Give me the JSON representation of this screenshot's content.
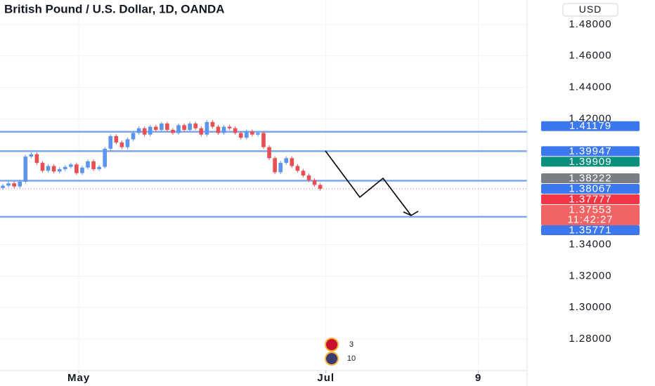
{
  "chart_data": {
    "type": "candlestick",
    "title": "British Pound / U.S. Dollar, 1D, OANDA",
    "currency": "USD",
    "up_color": "#5b95ee",
    "down_color": "#e84f55",
    "ylim": [
      1.2599,
      1.4956
    ],
    "yticks": [
      {
        "value": 1.28,
        "label": "1.28000"
      },
      {
        "value": 1.3,
        "label": "1.30000"
      },
      {
        "value": 1.32,
        "label": "1.32000"
      },
      {
        "value": 1.34,
        "label": "1.34000"
      },
      {
        "value": 1.42,
        "label": "1.42000"
      },
      {
        "value": 1.44,
        "label": "1.44000"
      },
      {
        "value": 1.46,
        "label": "1.46000"
      },
      {
        "value": 1.48,
        "label": "1.48000"
      }
    ],
    "xlim": [
      0,
      93
    ],
    "xticks": [
      {
        "value": 13.9,
        "label": "May"
      },
      {
        "value": 57.5,
        "label": "Jul"
      },
      {
        "value": 84.4,
        "label": "9"
      }
    ],
    "grid": true,
    "ohlc": [
      [
        1.376,
        1.3787,
        1.3748,
        1.3775
      ],
      [
        1.3775,
        1.3802,
        1.3763,
        1.379
      ],
      [
        1.379,
        1.3802,
        1.3758,
        1.377
      ],
      [
        1.377,
        1.3812,
        1.3758,
        1.38
      ],
      [
        1.38,
        1.3972,
        1.3788,
        1.396
      ],
      [
        1.396,
        1.3987,
        1.3948,
        1.3975
      ],
      [
        1.3975,
        1.3987,
        1.3908,
        1.392
      ],
      [
        1.392,
        1.3932,
        1.3858,
        1.387
      ],
      [
        1.387,
        1.3912,
        1.3858,
        1.39
      ],
      [
        1.39,
        1.3912,
        1.3853,
        1.3865
      ],
      [
        1.3865,
        1.3892,
        1.3853,
        1.388
      ],
      [
        1.388,
        1.3907,
        1.3868,
        1.3895
      ],
      [
        1.3895,
        1.3922,
        1.3883,
        1.391
      ],
      [
        1.391,
        1.3922,
        1.3843,
        1.3855
      ],
      [
        1.3855,
        1.3902,
        1.3843,
        1.389
      ],
      [
        1.389,
        1.3942,
        1.3878,
        1.393
      ],
      [
        1.393,
        1.3942,
        1.3868,
        1.388
      ],
      [
        1.388,
        1.3907,
        1.3868,
        1.3895
      ],
      [
        1.3895,
        1.4022,
        1.3883,
        1.401
      ],
      [
        1.401,
        1.4102,
        1.3998,
        1.409
      ],
      [
        1.409,
        1.4102,
        1.4038,
        1.405
      ],
      [
        1.405,
        1.4062,
        1.4008,
        1.402
      ],
      [
        1.402,
        1.4082,
        1.4008,
        1.407
      ],
      [
        1.407,
        1.4122,
        1.4058,
        1.411
      ],
      [
        1.411,
        1.4152,
        1.4098,
        1.414
      ],
      [
        1.414,
        1.4152,
        1.4088,
        1.41
      ],
      [
        1.41,
        1.4162,
        1.4088,
        1.415
      ],
      [
        1.415,
        1.4162,
        1.4118,
        1.413
      ],
      [
        1.413,
        1.4182,
        1.4118,
        1.417
      ],
      [
        1.417,
        1.4182,
        1.4118,
        1.413
      ],
      [
        1.413,
        1.4142,
        1.4098,
        1.411
      ],
      [
        1.411,
        1.4172,
        1.4098,
        1.416
      ],
      [
        1.416,
        1.4172,
        1.4118,
        1.413
      ],
      [
        1.413,
        1.4182,
        1.4118,
        1.417
      ],
      [
        1.417,
        1.4182,
        1.4128,
        1.414
      ],
      [
        1.414,
        1.4152,
        1.4088,
        1.41
      ],
      [
        1.41,
        1.4192,
        1.4088,
        1.418
      ],
      [
        1.418,
        1.4192,
        1.4138,
        1.415
      ],
      [
        1.415,
        1.4162,
        1.4098,
        1.411
      ],
      [
        1.411,
        1.4162,
        1.4098,
        1.415
      ],
      [
        1.415,
        1.4162,
        1.4128,
        1.414
      ],
      [
        1.414,
        1.4152,
        1.4098,
        1.411
      ],
      [
        1.411,
        1.4122,
        1.4068,
        1.408
      ],
      [
        1.408,
        1.4132,
        1.4068,
        1.412
      ],
      [
        1.412,
        1.4132,
        1.4088,
        1.41
      ],
      [
        1.41,
        1.4122,
        1.4088,
        1.411
      ],
      [
        1.411,
        1.4122,
        1.4008,
        1.402
      ],
      [
        1.402,
        1.4032,
        1.3938,
        1.395
      ],
      [
        1.395,
        1.3962,
        1.3848,
        1.386
      ],
      [
        1.386,
        1.3932,
        1.3848,
        1.392
      ],
      [
        1.392,
        1.3962,
        1.3908,
        1.395
      ],
      [
        1.395,
        1.3962,
        1.3888,
        1.39
      ],
      [
        1.39,
        1.3912,
        1.3858,
        1.387
      ],
      [
        1.387,
        1.3882,
        1.3828,
        1.384
      ],
      [
        1.384,
        1.3852,
        1.3798,
        1.381
      ],
      [
        1.381,
        1.3822,
        1.3768,
        1.378
      ],
      [
        1.378,
        1.3792,
        1.3743,
        1.3755
      ]
    ],
    "hlines": {
      "color": "#7ea7ea",
      "values": [
        1.41179,
        1.39947,
        1.38067,
        1.35771
      ]
    },
    "price_labels": [
      {
        "value": 1.41179,
        "color": "#3b78f0"
      },
      {
        "value": 1.39947,
        "color": "#3b78f0"
      },
      {
        "value": 1.39909,
        "color": "#0a8f7c"
      },
      {
        "value": 1.38222,
        "color": "#7a7d86"
      },
      {
        "value": 1.38067,
        "color": "#3b78f0"
      },
      {
        "value": 1.37777,
        "color": "#f23645"
      },
      {
        "value": 1.37553,
        "color": "#f26363"
      },
      {
        "value": 1.35771,
        "color": "#3b78f0"
      }
    ],
    "last_price_line": {
      "value": 1.37553,
      "color": "#f26363"
    },
    "countdown": "11:42:27",
    "events": [
      {
        "label": "3"
      },
      {
        "label": "10"
      }
    ]
  }
}
